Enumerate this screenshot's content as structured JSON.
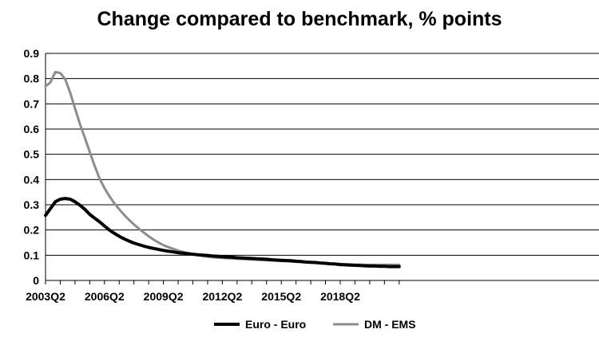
{
  "chart_data": {
    "type": "line",
    "title": "Change compared to benchmark, % points",
    "xlabel": "",
    "ylabel": "",
    "ylim": [
      0,
      0.9
    ],
    "yticks": [
      0,
      0.1,
      0.2,
      0.3,
      0.4,
      0.5,
      0.6,
      0.7,
      0.8,
      0.9
    ],
    "x_tick_labels": [
      "2003Q2",
      "2006Q2",
      "2009Q2",
      "2012Q2",
      "2015Q2",
      "2018Q2"
    ],
    "x_tick_indices": [
      0,
      12,
      24,
      36,
      48,
      60
    ],
    "x_count": 73,
    "grid": "horizontal",
    "legend_position": "bottom",
    "series": [
      {
        "name": "Euro - Euro",
        "color": "#000000",
        "values": [
          0.258,
          0.285,
          0.312,
          0.322,
          0.325,
          0.322,
          0.312,
          0.298,
          0.282,
          0.262,
          0.247,
          0.232,
          0.216,
          0.2,
          0.187,
          0.175,
          0.165,
          0.156,
          0.148,
          0.142,
          0.136,
          0.131,
          0.127,
          0.123,
          0.119,
          0.116,
          0.113,
          0.11,
          0.108,
          0.106,
          0.104,
          0.102,
          0.1,
          0.099,
          0.097,
          0.096,
          0.094,
          0.093,
          0.092,
          0.09,
          0.089,
          0.088,
          0.087,
          0.086,
          0.085,
          0.084,
          0.082,
          0.081,
          0.08,
          0.079,
          0.078,
          0.076,
          0.075,
          0.073,
          0.072,
          0.071,
          0.069,
          0.068,
          0.066,
          0.065,
          0.063,
          0.062,
          0.061,
          0.06,
          0.059,
          0.058,
          0.057,
          0.057,
          0.056,
          0.056,
          0.055,
          0.055,
          0.055
        ]
      },
      {
        "name": "DM - EMS",
        "color": "#8c8c8c",
        "values": [
          0.77,
          0.785,
          0.826,
          0.822,
          0.798,
          0.745,
          0.682,
          0.62,
          0.566,
          0.51,
          0.454,
          0.404,
          0.366,
          0.334,
          0.306,
          0.282,
          0.26,
          0.24,
          0.222,
          0.205,
          0.19,
          0.175,
          0.162,
          0.15,
          0.14,
          0.132,
          0.125,
          0.118,
          0.113,
          0.108,
          0.104,
          0.1,
          0.097,
          0.094,
          0.092,
          0.09,
          0.089,
          0.088,
          0.087,
          0.086,
          0.085,
          0.084,
          0.083,
          0.082,
          0.081,
          0.08,
          0.079,
          0.078,
          0.077,
          0.076,
          0.075,
          0.074,
          0.073,
          0.072,
          0.071,
          0.07,
          0.069,
          0.068,
          0.067,
          0.066,
          0.065,
          0.064,
          0.064,
          0.063,
          0.063,
          0.062,
          0.062,
          0.062,
          0.062,
          0.062,
          0.062,
          0.062,
          0.062
        ]
      }
    ]
  }
}
